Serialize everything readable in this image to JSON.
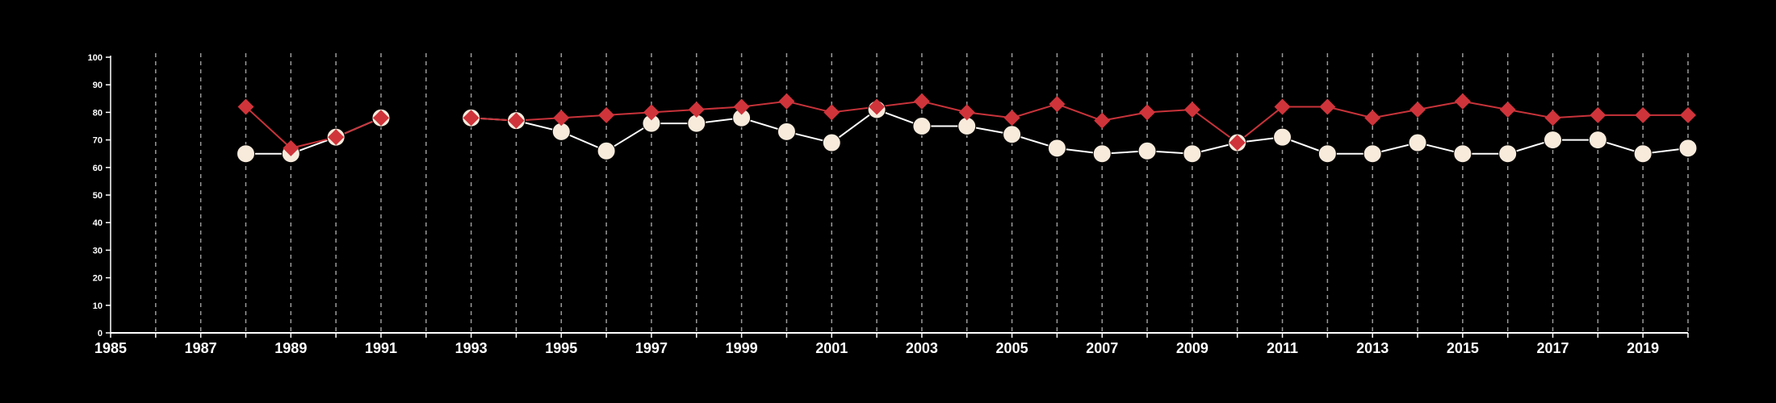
{
  "chart_data": {
    "type": "line",
    "x_ticks": [
      "1985",
      "1987",
      "1989",
      "1991",
      "1993",
      "1995",
      "1997",
      "1999",
      "2001",
      "2003",
      "2005",
      "2007",
      "2009",
      "2011",
      "2013",
      "2015",
      "2017",
      "2019"
    ],
    "y_ticks": [
      "0",
      "10",
      "20",
      "30",
      "40",
      "50",
      "60",
      "70",
      "80",
      "90",
      "100"
    ],
    "xlim": [
      1985,
      2020
    ],
    "ylim": [
      0,
      100
    ],
    "grid": "vertical dashed lines at every year",
    "legend": "none",
    "series": [
      {
        "marker": "diamond",
        "color": "#d0343b",
        "x": [
          1988,
          1989,
          1990,
          1991,
          1993,
          1994,
          1995,
          1996,
          1997,
          1998,
          1999,
          2000,
          2001,
          2002,
          2003,
          2004,
          2005,
          2006,
          2007,
          2008,
          2009,
          2010,
          2011,
          2012,
          2013,
          2014,
          2015,
          2016,
          2017,
          2018,
          2019,
          2020
        ],
        "values": [
          82,
          67,
          71,
          78,
          78,
          77,
          78,
          79,
          80,
          81,
          82,
          84,
          80,
          82,
          84,
          80,
          78,
          83,
          77,
          80,
          81,
          69,
          82,
          82,
          78,
          81,
          84,
          81,
          78,
          79,
          79,
          79
        ]
      },
      {
        "marker": "circle",
        "color": "#f8ebdc",
        "x": [
          1988,
          1989,
          1990,
          1991,
          1993,
          1994,
          1995,
          1996,
          1997,
          1998,
          1999,
          2000,
          2001,
          2002,
          2003,
          2004,
          2005,
          2006,
          2007,
          2008,
          2009,
          2010,
          2011,
          2012,
          2013,
          2014,
          2015,
          2016,
          2017,
          2018,
          2019,
          2020
        ],
        "values": [
          65,
          65,
          71,
          78,
          78,
          77,
          73,
          66,
          76,
          76,
          78,
          73,
          69,
          81,
          75,
          75,
          72,
          67,
          65,
          66,
          65,
          69,
          71,
          65,
          65,
          69,
          65,
          65,
          70,
          70,
          65,
          67
        ]
      }
    ]
  },
  "colors": {
    "background": "#000000",
    "axis": "#ffffff",
    "grid": "#9a9a9a"
  }
}
